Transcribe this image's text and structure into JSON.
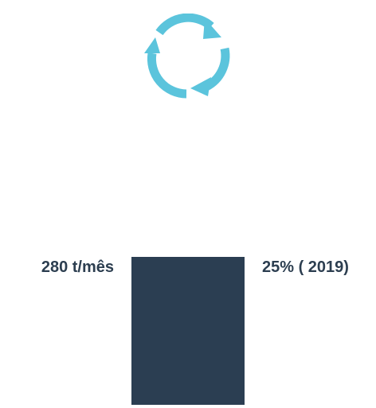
{
  "icon": {
    "name": "recycle-cycle-icon",
    "color": "#5bc4dc"
  },
  "stats": {
    "left_value": "280 t/mês",
    "right_value": "25% ( 2019)"
  },
  "bar": {
    "color": "#2b3e52"
  }
}
